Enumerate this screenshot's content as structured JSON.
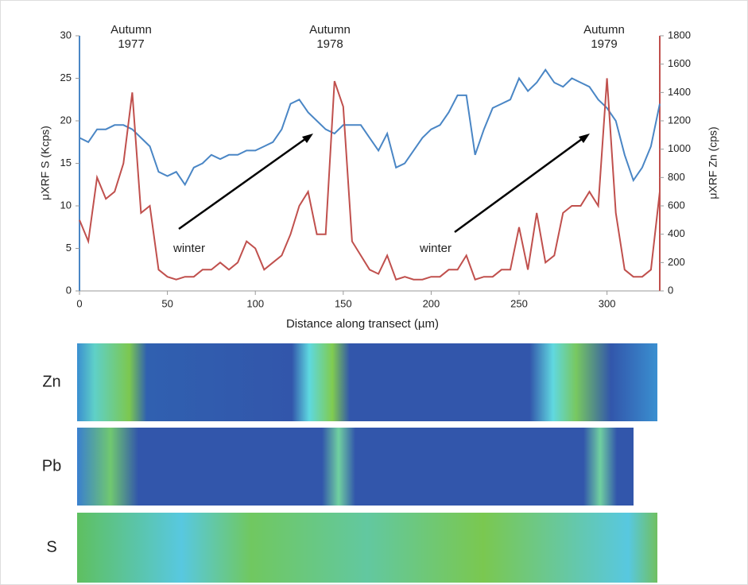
{
  "chart_data": {
    "type": "line",
    "xlabel": "Distance along transect (µm)",
    "ylabel": "μXRF S (Kcps)",
    "y2label": "μXRF Zn (cps)",
    "x": [
      0,
      5,
      10,
      15,
      20,
      25,
      30,
      35,
      40,
      45,
      50,
      55,
      60,
      65,
      70,
      75,
      80,
      85,
      90,
      95,
      100,
      105,
      110,
      115,
      120,
      125,
      130,
      135,
      140,
      145,
      150,
      155,
      160,
      165,
      170,
      175,
      180,
      185,
      190,
      195,
      200,
      205,
      210,
      215,
      220,
      225,
      230,
      235,
      240,
      245,
      250,
      255,
      260,
      265,
      270,
      275,
      280,
      285,
      290,
      295,
      300,
      305,
      310,
      315,
      320,
      325,
      330
    ],
    "series": [
      {
        "color": "#4a86c5",
        "values": [
          18,
          17.5,
          19,
          19,
          19.5,
          19.5,
          19,
          18,
          17,
          14,
          13.5,
          14,
          12.5,
          14.5,
          15,
          16,
          15.5,
          16,
          16,
          16.5,
          16.5,
          17,
          17.5,
          19,
          22,
          22.5,
          21,
          20,
          19,
          18.5,
          19.5,
          19.5,
          19.5,
          18,
          16.5,
          18.5,
          14.5,
          15,
          16.5,
          18,
          19,
          19.5,
          21,
          23,
          23,
          16,
          19,
          21.5,
          22,
          22.5,
          25,
          23.5,
          24.5,
          26,
          24.5,
          24,
          25,
          24.5,
          24,
          22.5,
          21.5,
          20,
          16,
          13,
          14.5,
          17,
          22
        ]
      },
      {
        "color": "#c0504d",
        "axis": "y2",
        "values": [
          500,
          350,
          800,
          650,
          700,
          900,
          1400,
          550,
          600,
          150,
          100,
          80,
          100,
          100,
          150,
          150,
          200,
          150,
          200,
          350,
          300,
          150,
          200,
          250,
          400,
          600,
          700,
          400,
          400,
          1480,
          1300,
          350,
          250,
          150,
          120,
          250,
          80,
          100,
          80,
          80,
          100,
          100,
          150,
          150,
          250,
          80,
          100,
          100,
          150,
          150,
          450,
          150,
          550,
          200,
          250,
          550,
          600,
          600,
          700,
          600,
          1500,
          550,
          150,
          100,
          100,
          150,
          700
        ]
      }
    ],
    "xlim": [
      0,
      330
    ],
    "xticks": [
      0,
      50,
      100,
      150,
      200,
      250,
      300
    ],
    "ylim": [
      0,
      30
    ],
    "yticks": [
      0,
      5,
      10,
      15,
      20,
      25,
      30
    ],
    "y2lim": [
      0,
      1800
    ],
    "y2ticks": [
      0,
      200,
      400,
      600,
      800,
      1000,
      1200,
      1400,
      1600,
      1800
    ],
    "annotations": [
      [
        "Autumn",
        "1977"
      ],
      [
        "Autumn",
        "1978"
      ],
      [
        "Autumn",
        "1979"
      ]
    ],
    "winter_labels": [
      "winter",
      "winter"
    ],
    "panels": [
      "Zn",
      "Pb",
      "S"
    ]
  }
}
